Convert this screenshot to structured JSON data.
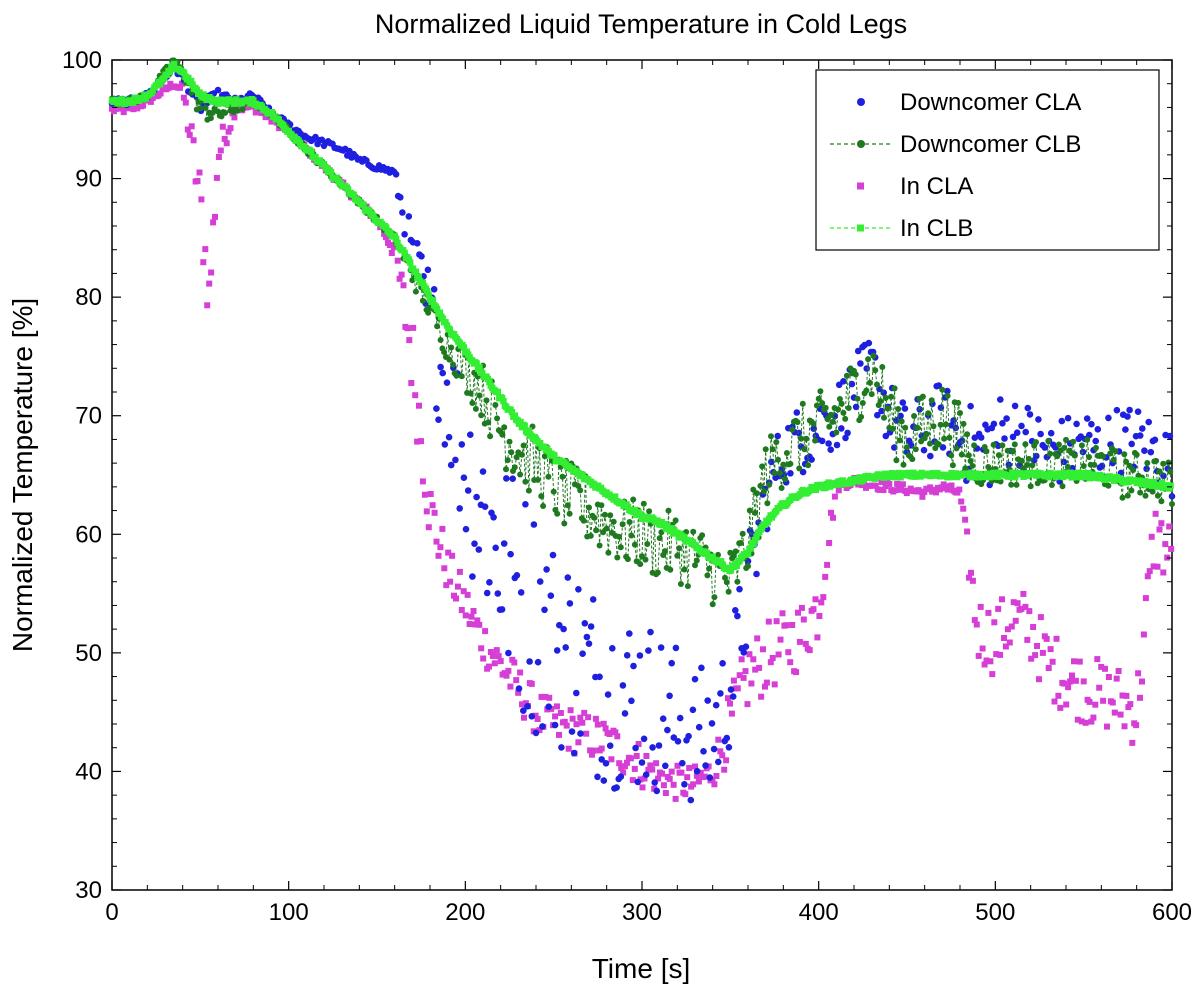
{
  "chart_data": {
    "type": "scatter",
    "title": "Normalized Liquid Temperature in Cold Legs",
    "xlabel": "Time [s]",
    "ylabel": "Normalized Temperature [%]",
    "xlim": [
      0,
      600
    ],
    "ylim": [
      30,
      100
    ],
    "x_ticks": [
      "0",
      "100",
      "200",
      "300",
      "400",
      "500",
      "600"
    ],
    "y_ticks": [
      "30",
      "40",
      "50",
      "60",
      "70",
      "80",
      "90",
      "100"
    ],
    "grid": false,
    "legend_position": "top-right",
    "colors": {
      "downcomer_cla": "#1f1fe0",
      "downcomer_clb": "#1f7a1f",
      "in_cla": "#d63fd6",
      "in_clb": "#33ee33"
    },
    "legend": [
      {
        "label": "Downcomer CLA",
        "style": "dots",
        "color": "#1f1fe0"
      },
      {
        "label": "Downcomer CLB",
        "style": "dashed-dots",
        "color": "#1f7a1f"
      },
      {
        "label": "In CLA",
        "style": "squares",
        "color": "#d63fd6"
      },
      {
        "label": "In CLB",
        "style": "dashed-squares",
        "color": "#33ee33"
      }
    ],
    "series": [
      {
        "name": "Downcomer CLA",
        "x": [
          0,
          10,
          20,
          30,
          35,
          40,
          50,
          60,
          70,
          80,
          90,
          100,
          110,
          120,
          130,
          140,
          150,
          160,
          170,
          180,
          190,
          200,
          210,
          220,
          230,
          240,
          250,
          260,
          270,
          280,
          290,
          300,
          310,
          320,
          330,
          340,
          350,
          360,
          370,
          380,
          390,
          400,
          410,
          420,
          430,
          440,
          450,
          460,
          470,
          480,
          490,
          500,
          510,
          520,
          530,
          540,
          550,
          560,
          570,
          580,
          590,
          600
        ],
        "y": [
          96.5,
          96.5,
          97,
          98.5,
          99.5,
          98.5,
          96,
          97,
          96.5,
          97,
          95.5,
          94.5,
          93.5,
          93,
          92.5,
          91.5,
          91,
          90.5,
          83,
          78,
          72,
          66,
          62,
          58,
          55,
          53,
          51,
          50,
          48,
          47,
          46,
          46,
          45,
          44,
          43,
          43,
          47,
          55,
          63,
          67,
          68,
          69,
          70,
          72,
          74,
          70,
          68,
          69,
          70,
          68,
          67,
          68,
          69,
          68,
          67,
          67,
          68,
          67,
          68,
          68,
          67,
          66
        ],
        "spread": [
          0.3,
          0.3,
          0.3,
          0.3,
          0.3,
          0.3,
          0.5,
          0.5,
          0.3,
          0.3,
          0.3,
          0.3,
          0.3,
          0.3,
          0.3,
          0.3,
          0.3,
          0.3,
          3,
          5,
          6,
          8,
          9,
          10,
          10,
          10,
          9,
          9,
          9,
          8,
          8,
          8,
          7,
          7,
          6,
          6,
          5,
          5,
          3,
          3,
          3,
          3,
          3,
          3,
          3,
          3,
          3,
          3,
          3,
          3,
          4,
          4,
          3,
          3,
          3,
          3,
          3,
          3,
          3,
          3,
          3,
          3
        ]
      },
      {
        "name": "Downcomer CLB",
        "x": [
          0,
          10,
          20,
          30,
          35,
          40,
          50,
          60,
          70,
          80,
          90,
          100,
          110,
          120,
          130,
          140,
          150,
          160,
          170,
          180,
          190,
          200,
          210,
          220,
          230,
          240,
          250,
          260,
          270,
          280,
          290,
          300,
          310,
          320,
          330,
          340,
          350,
          360,
          370,
          380,
          390,
          400,
          410,
          420,
          430,
          440,
          450,
          460,
          470,
          480,
          490,
          500,
          510,
          520,
          530,
          540,
          550,
          560,
          570,
          580,
          590,
          600
        ],
        "y": [
          96.5,
          96.5,
          97,
          99,
          100,
          99,
          96,
          95.5,
          96,
          96.5,
          95.5,
          94,
          92.5,
          91,
          89.5,
          88,
          86.5,
          85,
          82,
          79,
          76,
          74,
          72,
          69,
          67,
          66,
          64,
          63,
          62,
          61,
          60,
          60,
          59,
          59,
          58,
          57,
          56,
          59,
          65,
          67,
          68,
          69,
          70,
          72,
          74,
          70,
          68,
          69,
          70,
          68,
          66,
          66,
          66,
          66,
          66,
          66,
          66,
          66,
          65,
          65,
          65,
          64
        ],
        "spread": [
          0.3,
          0.3,
          0.3,
          0.3,
          0.3,
          0.3,
          1,
          1,
          0.5,
          0.3,
          0.3,
          0.3,
          0.3,
          0.3,
          0.3,
          0.3,
          0.3,
          0.3,
          1,
          1,
          1.5,
          2,
          2.5,
          3,
          3,
          3,
          3,
          3,
          3,
          3,
          3,
          3,
          3,
          3,
          3,
          3,
          3,
          3,
          3,
          3,
          3,
          3,
          3,
          3,
          3,
          3,
          3,
          3,
          3,
          3,
          2,
          2,
          2,
          2,
          2,
          2,
          2,
          2,
          2,
          2,
          2,
          2
        ]
      },
      {
        "name": "In CLA",
        "x": [
          0,
          10,
          20,
          30,
          35,
          40,
          45,
          50,
          55,
          60,
          65,
          70,
          80,
          90,
          100,
          110,
          120,
          130,
          140,
          150,
          160,
          170,
          180,
          190,
          200,
          210,
          220,
          230,
          240,
          250,
          260,
          270,
          280,
          290,
          300,
          310,
          320,
          330,
          340,
          350,
          360,
          370,
          380,
          390,
          400,
          410,
          420,
          430,
          440,
          450,
          460,
          470,
          480,
          490,
          500,
          510,
          520,
          530,
          540,
          550,
          560,
          570,
          580,
          590,
          600
        ],
        "y": [
          95.8,
          95.8,
          96.5,
          97.5,
          98,
          97.5,
          93,
          88,
          80,
          92,
          94,
          96,
          96,
          95,
          94,
          92.5,
          91,
          89.5,
          88,
          86.5,
          84,
          75,
          62,
          57,
          54,
          51,
          49,
          47,
          45,
          44,
          43.5,
          43,
          42.5,
          41.5,
          40.5,
          39.5,
          39,
          39,
          40,
          44,
          48,
          49.5,
          50.5,
          51.5,
          54,
          64,
          64.5,
          64.2,
          64,
          63.8,
          63.5,
          64,
          63.5,
          52,
          51,
          53,
          52,
          49,
          48,
          47,
          46.5,
          46,
          45,
          60,
          58
        ],
        "spread": [
          0.3,
          0.3,
          0.3,
          0.3,
          0.3,
          0.5,
          2,
          3,
          3,
          2,
          1,
          0.5,
          0.3,
          0.3,
          0.3,
          0.3,
          0.3,
          0.3,
          0.3,
          0.3,
          1,
          4,
          3,
          2,
          2,
          2,
          2,
          2,
          2,
          2,
          2,
          2,
          2,
          2,
          2,
          1.5,
          1.5,
          1.5,
          1.5,
          3,
          3,
          3,
          3,
          3,
          3,
          0.4,
          0.4,
          0.4,
          0.4,
          0.4,
          0.4,
          0.4,
          0.4,
          3,
          3,
          3,
          3,
          3,
          3,
          3,
          3,
          3,
          3,
          3,
          3
        ]
      },
      {
        "name": "In CLB",
        "x": [
          0,
          10,
          20,
          30,
          35,
          40,
          50,
          60,
          70,
          80,
          90,
          100,
          110,
          120,
          130,
          140,
          150,
          160,
          170,
          180,
          190,
          200,
          210,
          220,
          230,
          240,
          250,
          260,
          270,
          280,
          290,
          300,
          310,
          320,
          330,
          340,
          350,
          360,
          370,
          380,
          390,
          400,
          410,
          420,
          430,
          440,
          450,
          460,
          470,
          480,
          490,
          500,
          510,
          520,
          530,
          540,
          550,
          560,
          570,
          580,
          590,
          600
        ],
        "y": [
          96.5,
          96.5,
          97,
          98.5,
          99.5,
          99,
          97,
          96.5,
          96.5,
          96.5,
          95.5,
          94,
          92.5,
          91,
          89.5,
          88,
          86.5,
          85,
          82.5,
          80,
          77.5,
          75.5,
          73.5,
          71.5,
          69.5,
          68,
          66.5,
          65.5,
          64.5,
          63.5,
          62.5,
          61.5,
          61,
          60,
          59,
          58,
          57,
          58.5,
          61,
          62.5,
          63.5,
          64,
          64.3,
          64.5,
          64.8,
          65,
          65,
          65,
          65,
          65,
          65,
          65,
          65,
          65,
          65,
          65,
          65,
          64.8,
          64.6,
          64.4,
          64.2,
          64
        ]
      }
    ]
  }
}
